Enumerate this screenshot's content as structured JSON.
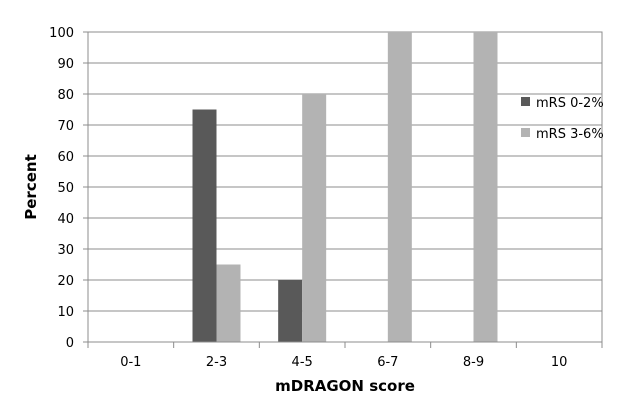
{
  "chart_data": {
    "type": "bar",
    "title": "",
    "xlabel": "mDRAGON score",
    "ylabel": "Percent",
    "categories": [
      "0-1",
      "2-3",
      "4-5",
      "6-7",
      "8-9",
      "10"
    ],
    "series": [
      {
        "name": "mRS 0-2%",
        "color": "#595959",
        "values": [
          0,
          75,
          20,
          0,
          0,
          0
        ]
      },
      {
        "name": "mRS 3-6%",
        "color": "#b3b3b3",
        "values": [
          0,
          25,
          80,
          100,
          100,
          0
        ]
      }
    ],
    "ylim": [
      0,
      100
    ],
    "yticks": [
      0,
      10,
      20,
      30,
      40,
      50,
      60,
      70,
      80,
      90,
      100
    ],
    "grid": true,
    "legend_position": "right"
  }
}
